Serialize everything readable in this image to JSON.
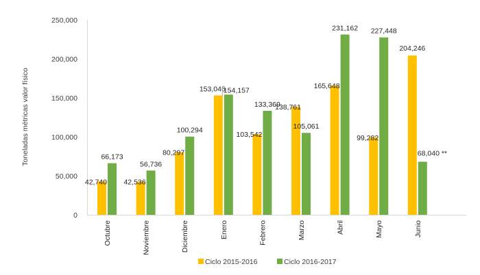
{
  "chart_data": {
    "type": "bar",
    "title": "",
    "xlabel": "",
    "ylabel": "Toneladas métricas valor físico",
    "ylim": [
      0,
      250000
    ],
    "yticks": [
      0,
      50000,
      100000,
      150000,
      200000,
      250000
    ],
    "ytick_labels": [
      "0",
      "50,000",
      "100,000",
      "150,000",
      "200,000",
      "250,000"
    ],
    "grid": false,
    "legend_position": "bottom",
    "categories": [
      "Octubre",
      "Noviembre",
      "Diciembre",
      "Enero",
      "Febrero",
      "Marzo",
      "Abril",
      "Mayo",
      "Junio"
    ],
    "series": [
      {
        "name": "Ciclo 2015-2016",
        "color": "#FFC000",
        "values": [
          42740,
          42536,
          80297,
          153046,
          103542,
          138761,
          165648,
          99282,
          204246
        ],
        "labels": [
          "42,740",
          "42,536",
          "80,297",
          "153,046",
          "103,542",
          "138,761",
          "165,648",
          "99,282",
          "204,246"
        ]
      },
      {
        "name": "Ciclo 2016-2017",
        "color": "#70AD47",
        "values": [
          66173,
          56736,
          100294,
          154157,
          133369,
          105061,
          231162,
          227448,
          68040
        ],
        "labels": [
          "66,173",
          "56,736",
          "100,294",
          "154,157",
          "133,369",
          "105,061",
          "231,162",
          "227,448",
          "68,040 **"
        ]
      }
    ],
    "annotations": [
      "**"
    ]
  }
}
